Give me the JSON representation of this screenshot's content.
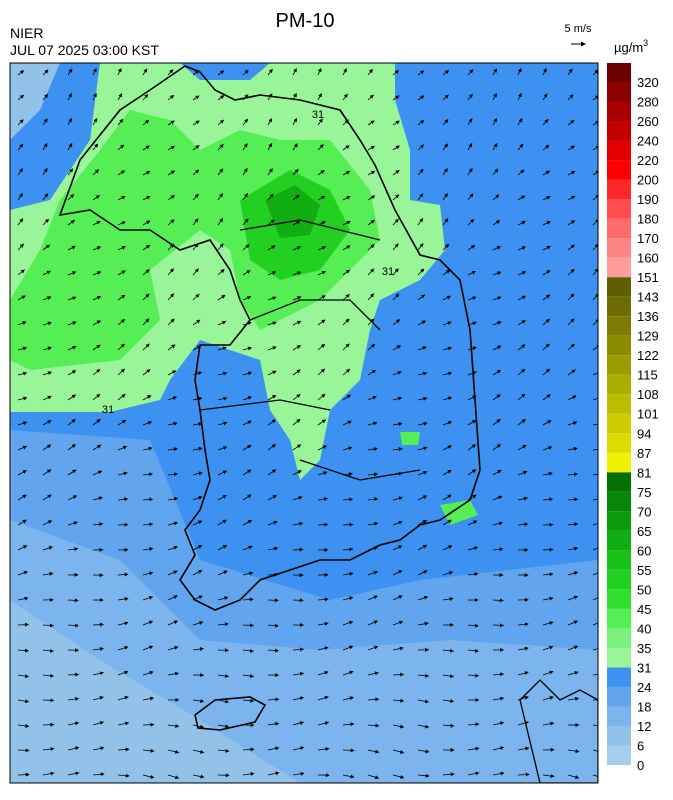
{
  "header": {
    "title": "PM-10",
    "agency": "NIER",
    "timestamp": "JUL 07 2025 03:00 KST",
    "wind_scale": "5 m/s",
    "unit": "µg/m",
    "unit_sup": "3"
  },
  "map": {
    "contour_labels": [
      "31",
      "31",
      "31"
    ]
  },
  "colorbar": {
    "levels": [
      0,
      6,
      12,
      18,
      24,
      31,
      35,
      40,
      45,
      50,
      55,
      60,
      65,
      70,
      75,
      81,
      87,
      94,
      101,
      108,
      115,
      122,
      129,
      136,
      143,
      151,
      160,
      170,
      180,
      190,
      200,
      220,
      240,
      260,
      280,
      320
    ],
    "colors": [
      "#a6cdeb",
      "#92c1ea",
      "#7cb4ed",
      "#62a5ef",
      "#3d91f0",
      "#98f598",
      "#7cf27c",
      "#55ee55",
      "#30e030",
      "#22d022",
      "#18c018",
      "#10ae10",
      "#0a9c0a",
      "#078607",
      "#057005",
      "#f2f200",
      "#dcdc00",
      "#cccc00",
      "#bcbc00",
      "#acac00",
      "#9c9c00",
      "#8c8c00",
      "#7c7c00",
      "#6c6c00",
      "#5e5e00",
      "#ff9c9c",
      "#ff8484",
      "#ff6a6a",
      "#ff4c4c",
      "#ff2828",
      "#ff0000",
      "#e00000",
      "#c40000",
      "#a80000",
      "#8c0000",
      "#6a0000"
    ]
  }
}
